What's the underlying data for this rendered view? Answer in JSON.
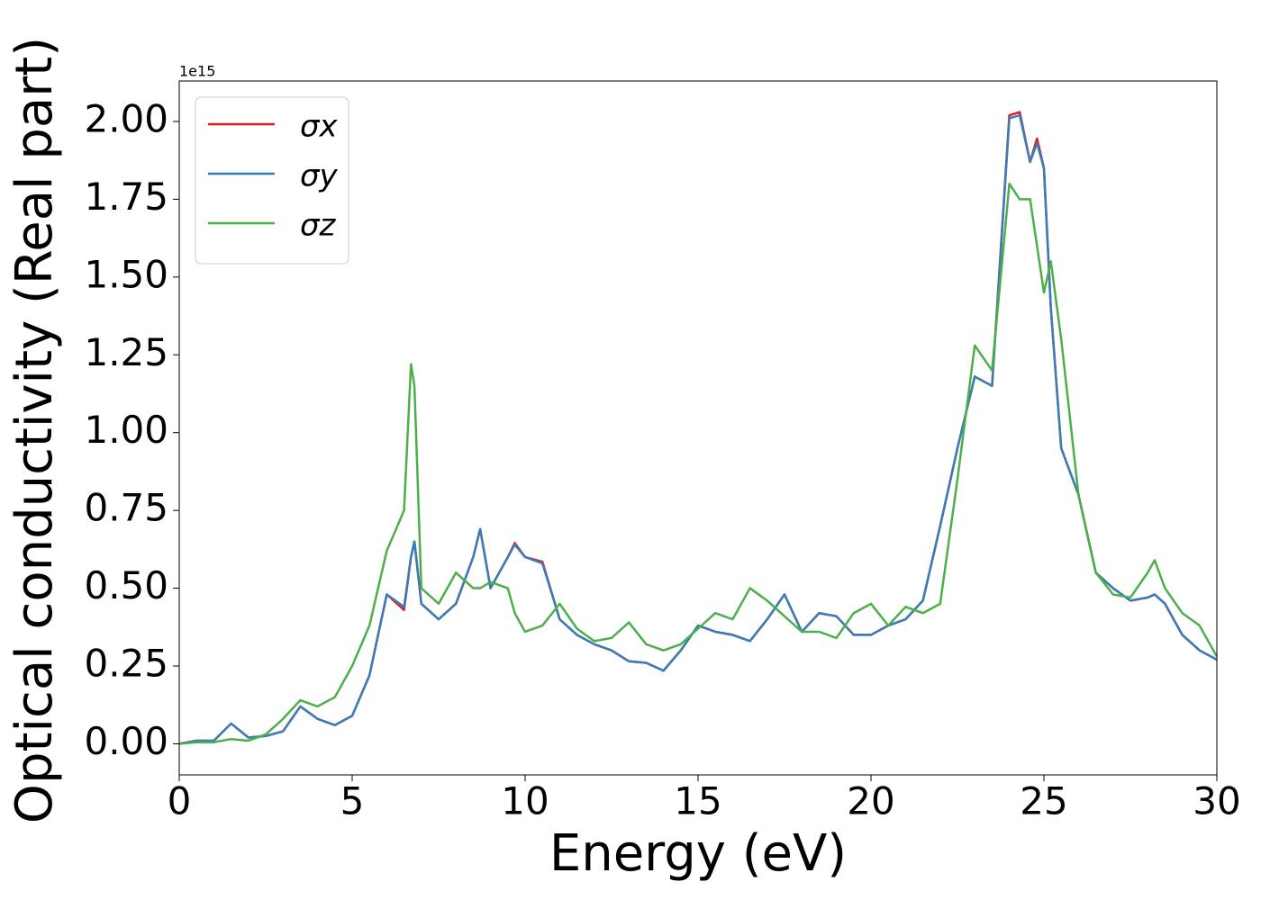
{
  "chart_data": {
    "type": "line",
    "xlabel": "Energy (eV)",
    "ylabel": "Optical conductivity (Real part)",
    "y_offset_label": "1e15",
    "x": [
      0,
      0.5,
      1,
      1.5,
      2,
      2.5,
      3,
      3.5,
      4,
      4.5,
      5,
      5.5,
      6,
      6.5,
      6.7,
      6.8,
      7,
      7.5,
      8,
      8.5,
      8.7,
      9,
      9.5,
      9.7,
      10,
      10.5,
      11,
      11.5,
      12,
      12.5,
      13,
      13.5,
      14,
      14.5,
      15,
      15.5,
      16,
      16.5,
      17,
      17.5,
      18,
      18.5,
      19,
      19.5,
      20,
      20.5,
      21,
      21.5,
      22,
      22.5,
      23,
      23.5,
      24,
      24.3,
      24.6,
      24.8,
      25,
      25.2,
      25.5,
      26,
      26.5,
      27,
      27.5,
      28,
      28.2,
      28.5,
      29,
      29.5,
      30
    ],
    "series": [
      {
        "name": "σx",
        "color": "#e41a1c",
        "values": [
          0,
          0.01,
          0.01,
          0.065,
          0.02,
          0.025,
          0.04,
          0.12,
          0.08,
          0.06,
          0.09,
          0.22,
          0.48,
          0.43,
          0.6,
          0.65,
          0.45,
          0.4,
          0.45,
          0.6,
          0.69,
          0.5,
          0.6,
          0.645,
          0.6,
          0.585,
          0.4,
          0.35,
          0.32,
          0.3,
          0.265,
          0.26,
          0.235,
          0.3,
          0.38,
          0.36,
          0.35,
          0.33,
          0.4,
          0.48,
          0.36,
          0.42,
          0.41,
          0.35,
          0.35,
          0.38,
          0.4,
          0.46,
          0.7,
          0.95,
          1.18,
          1.15,
          2.02,
          2.03,
          1.87,
          1.945,
          1.85,
          1.4,
          0.95,
          0.8,
          0.55,
          0.5,
          0.46,
          0.47,
          0.48,
          0.45,
          0.35,
          0.3,
          0.27
        ]
      },
      {
        "name": "σy",
        "color": "#377eb8",
        "values": [
          0,
          0.01,
          0.01,
          0.065,
          0.02,
          0.025,
          0.04,
          0.12,
          0.08,
          0.06,
          0.09,
          0.22,
          0.48,
          0.44,
          0.6,
          0.65,
          0.45,
          0.4,
          0.45,
          0.6,
          0.69,
          0.5,
          0.6,
          0.64,
          0.6,
          0.58,
          0.4,
          0.35,
          0.32,
          0.3,
          0.265,
          0.26,
          0.235,
          0.3,
          0.38,
          0.36,
          0.35,
          0.33,
          0.4,
          0.48,
          0.36,
          0.42,
          0.41,
          0.35,
          0.35,
          0.38,
          0.4,
          0.46,
          0.7,
          0.95,
          1.18,
          1.15,
          2.01,
          2.02,
          1.87,
          1.93,
          1.85,
          1.4,
          0.95,
          0.8,
          0.55,
          0.5,
          0.46,
          0.47,
          0.48,
          0.45,
          0.35,
          0.3,
          0.27
        ]
      },
      {
        "name": "σz",
        "color": "#4daf4a",
        "values": [
          0,
          0.005,
          0.005,
          0.015,
          0.01,
          0.03,
          0.08,
          0.14,
          0.12,
          0.15,
          0.25,
          0.38,
          0.62,
          0.75,
          1.22,
          1.15,
          0.5,
          0.45,
          0.55,
          0.5,
          0.5,
          0.52,
          0.5,
          0.42,
          0.36,
          0.38,
          0.45,
          0.37,
          0.33,
          0.34,
          0.39,
          0.32,
          0.3,
          0.32,
          0.37,
          0.42,
          0.4,
          0.5,
          0.46,
          0.41,
          0.36,
          0.36,
          0.34,
          0.42,
          0.45,
          0.38,
          0.44,
          0.42,
          0.45,
          0.85,
          1.28,
          1.2,
          1.8,
          1.75,
          1.75,
          1.6,
          1.45,
          1.55,
          1.3,
          0.8,
          0.55,
          0.48,
          0.47,
          0.55,
          0.59,
          0.5,
          0.42,
          0.38,
          0.28
        ]
      }
    ],
    "xlim": [
      0,
      30
    ],
    "xticks": [
      0,
      5,
      10,
      15,
      20,
      25,
      30
    ],
    "ylim": [
      -0.1,
      2.13
    ],
    "yticks": [
      {
        "value": 0,
        "label": "0.00"
      },
      {
        "value": 0.25,
        "label": "0.25"
      },
      {
        "value": 0.5,
        "label": "0.50"
      },
      {
        "value": 0.75,
        "label": "0.75"
      },
      {
        "value": 1,
        "label": "1.00"
      },
      {
        "value": 1.25,
        "label": "1.25"
      },
      {
        "value": 1.5,
        "label": "1.50"
      },
      {
        "value": 1.75,
        "label": "1.75"
      },
      {
        "value": 2,
        "label": "2.00"
      }
    ],
    "legend": "upper left"
  }
}
